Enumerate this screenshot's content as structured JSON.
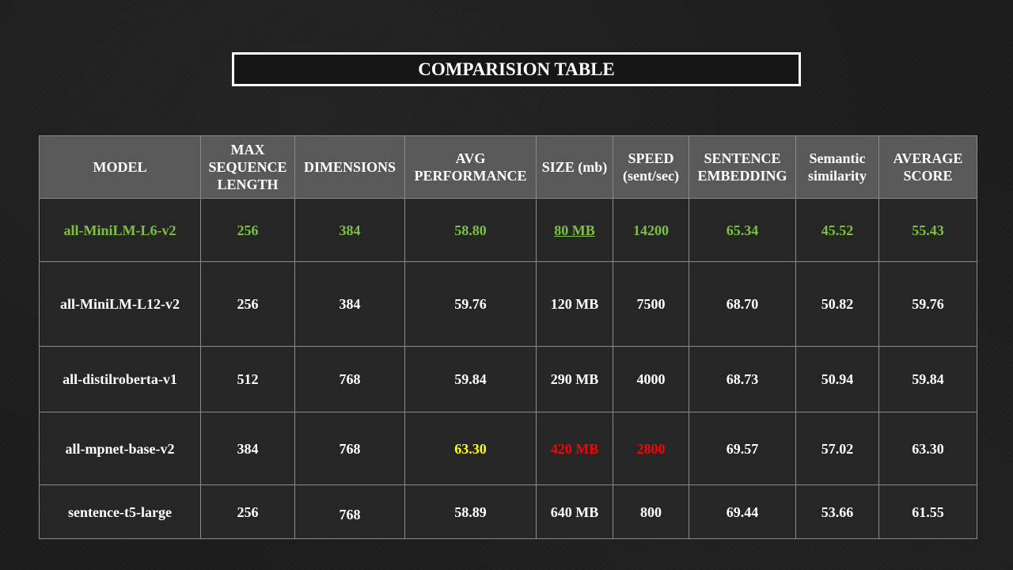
{
  "title": "COMPARISION TABLE",
  "colors": {
    "highlight_green": "#7cc142",
    "highlight_yellow": "#ffff00",
    "highlight_red": "#ff0000",
    "header_bg": "#595959",
    "cell_bg": "#262626"
  },
  "table": {
    "headers": [
      "MODEL",
      "MAX SEQUENCE LENGTH",
      "DIMENSIONS",
      "AVG PERFORMANCE",
      "SIZE (mb)",
      "SPEED (sent/sec)",
      "SENTENCE EMBEDDING",
      "Semantic similarity",
      "AVERAGE SCORE"
    ],
    "rows": [
      [
        "all-MiniLM-L6-v2",
        "256",
        "384",
        "58.80",
        "80 MB",
        "14200",
        "65.34",
        "45.52",
        "55.43"
      ],
      [
        "all-MiniLM-L12-v2",
        "256",
        "384",
        "59.76",
        "120 MB",
        "7500",
        "68.70",
        "50.82",
        "59.76"
      ],
      [
        "all-distilroberta-v1",
        "512",
        "768",
        "59.84",
        "290 MB",
        "4000",
        "68.73",
        "50.94",
        "59.84"
      ],
      [
        "all-mpnet-base-v2",
        "384",
        "768",
        "63.30",
        "420 MB",
        "2800",
        "69.57",
        "57.02",
        "63.30"
      ],
      [
        "sentence-t5-large",
        "256",
        "768",
        "58.89",
        "640 MB",
        "800",
        "69.44",
        "53.66",
        "61.55"
      ]
    ]
  }
}
